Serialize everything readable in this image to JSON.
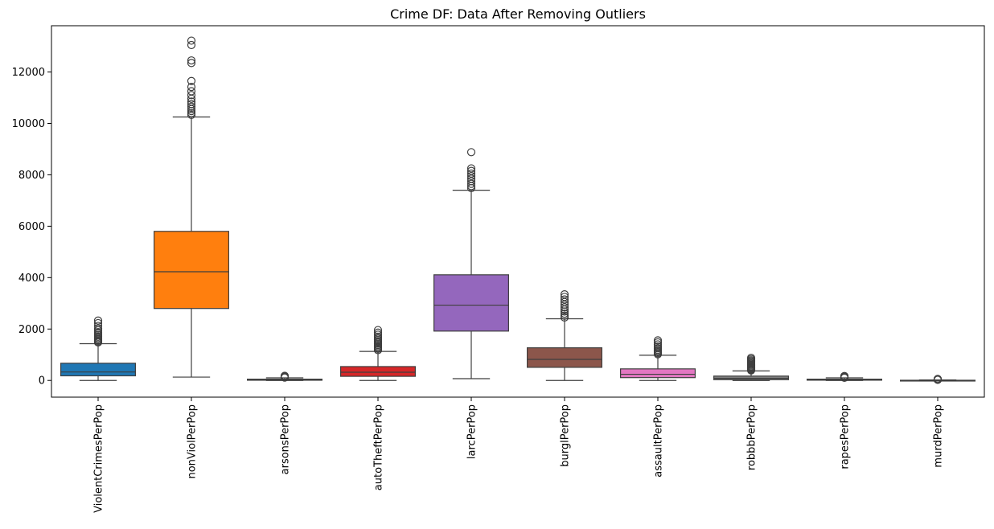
{
  "chart_data": {
    "type": "box",
    "title": "Crime DF: Data After Removing Outliers",
    "xlabel": "",
    "ylabel": "",
    "ylim": [
      -650,
      13800
    ],
    "yticks": [
      0,
      2000,
      4000,
      6000,
      8000,
      10000,
      12000
    ],
    "grid": false,
    "categories": [
      "ViolentCrimesPerPop",
      "nonViolPerPop",
      "arsonsPerPop",
      "autoTheftPerPop",
      "larcPerPop",
      "burglPerPop",
      "assaultPerPop",
      "robbbPerPop",
      "rapesPerPop",
      "murdPerPop"
    ],
    "series": [
      {
        "category": "ViolentCrimesPerPop",
        "color": "#1f77b4",
        "whisker_low": 0,
        "q1": 180,
        "median": 330,
        "q3": 670,
        "whisker_high": 1430,
        "outliers": [
          1480,
          1520,
          1560,
          1600,
          1650,
          1700,
          1760,
          1820,
          1880,
          1950,
          2020,
          2120,
          2230,
          2330
        ]
      },
      {
        "category": "nonViolPerPop",
        "color": "#ff7f0e",
        "whisker_low": 130,
        "q1": 2800,
        "median": 4230,
        "q3": 5800,
        "whisker_high": 10250,
        "outliers": [
          10330,
          10400,
          10480,
          10560,
          10650,
          10750,
          10850,
          10960,
          11100,
          11250,
          11420,
          11650,
          12350,
          12450,
          13050,
          13220
        ]
      },
      {
        "category": "arsonsPerPop",
        "color": "#d62728",
        "whisker_low": 0,
        "q1": 8,
        "median": 25,
        "q3": 50,
        "whisker_high": 100,
        "outliers": [
          110,
          125,
          140,
          160,
          180
        ]
      },
      {
        "category": "autoTheftPerPop",
        "color": "#d62728",
        "whisker_low": 0,
        "q1": 160,
        "median": 320,
        "q3": 540,
        "whisker_high": 1130,
        "outliers": [
          1180,
          1230,
          1280,
          1330,
          1380,
          1430,
          1480,
          1530,
          1580,
          1640,
          1700,
          1780,
          1860,
          1960
        ]
      },
      {
        "category": "larcPerPop",
        "color": "#9467bd",
        "whisker_low": 70,
        "q1": 1920,
        "median": 2930,
        "q3": 4110,
        "whisker_high": 7400,
        "outliers": [
          7480,
          7560,
          7650,
          7750,
          7850,
          7950,
          8050,
          8150,
          8250,
          8880
        ]
      },
      {
        "category": "burglPerPop",
        "color": "#8c564b",
        "whisker_low": 0,
        "q1": 510,
        "median": 820,
        "q3": 1270,
        "whisker_high": 2400,
        "outliers": [
          2450,
          2520,
          2600,
          2680,
          2760,
          2850,
          2950,
          3050,
          3150,
          3250,
          3350
        ]
      },
      {
        "category": "assaultPerPop",
        "color": "#e377c2",
        "whisker_low": 0,
        "q1": 110,
        "median": 240,
        "q3": 450,
        "whisker_high": 980,
        "outliers": [
          1020,
          1060,
          1100,
          1140,
          1190,
          1250,
          1320,
          1400,
          1480,
          1560
        ]
      },
      {
        "category": "robbbPerPop",
        "color": "#7f7f7f",
        "whisker_low": 0,
        "q1": 30,
        "median": 80,
        "q3": 170,
        "whisker_high": 370,
        "outliers": [
          390,
          420,
          450,
          480,
          510,
          540,
          580,
          620,
          660,
          700,
          740,
          780,
          830,
          880
        ]
      },
      {
        "category": "rapesPerPop",
        "color": "#bcbd22",
        "whisker_low": 0,
        "q1": 10,
        "median": 30,
        "q3": 50,
        "whisker_high": 100,
        "outliers": [
          105,
          115,
          125,
          140,
          155,
          170
        ]
      },
      {
        "category": "murdPerPop",
        "color": "#17becf",
        "whisker_low": 0,
        "q1": 0,
        "median": 3,
        "q3": 8,
        "whisker_high": 20,
        "outliers": [
          24,
          30,
          38,
          48,
          60
        ]
      }
    ]
  }
}
